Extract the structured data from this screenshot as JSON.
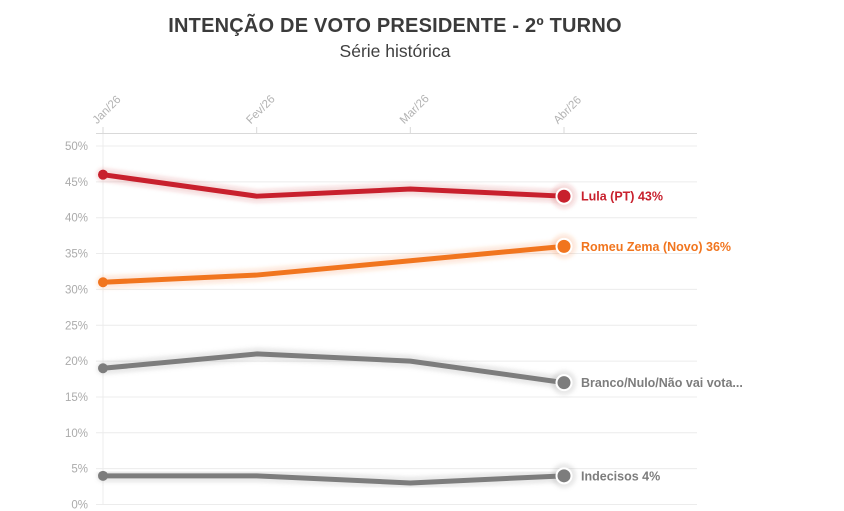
{
  "header": {
    "title": "INTENÇÃO DE VOTO PRESIDENTE - 2º TURNO",
    "subtitle": "Série histórica"
  },
  "colors": {
    "red": "#c8202d",
    "orange": "#f1751e",
    "gray": "#7d7d7d",
    "title_text": "#3b3b3b",
    "grid_line": "#ececec",
    "axis_line": "#d9d9d9",
    "x_tick_label": "#b3b3b3",
    "y_tick_label": "#ababab",
    "background": "#ffffff"
  },
  "chart_data": {
    "type": "line",
    "title": "INTENÇÃO DE VOTO PRESIDENTE - 2º TURNO",
    "subtitle": "Série histórica",
    "categories": [
      "Jan/26",
      "Fev/26",
      "Mar/26",
      "Abr/26"
    ],
    "series": [
      {
        "name": "Lula (PT)",
        "values": [
          46,
          43,
          44,
          43
        ],
        "color": "#c8202d",
        "end_label": "Lula (PT) 43%"
      },
      {
        "name": "Romeu Zema (Novo)",
        "values": [
          31,
          32,
          34,
          36
        ],
        "color": "#f1751e",
        "end_label": "Romeu Zema (Novo) 36%"
      },
      {
        "name": "Branco/Nulo/Não vai votar",
        "values": [
          19,
          21,
          20,
          17
        ],
        "color": "#7d7d7d",
        "end_label": "Branco/Nulo/Não vai vota..."
      },
      {
        "name": "Indecisos",
        "values": [
          4,
          4,
          3,
          4
        ],
        "color": "#7d7d7d",
        "end_label": "Indecisos 4%"
      }
    ],
    "xlabel": "",
    "ylabel": "",
    "ylim": [
      0,
      50
    ],
    "ytick_step": 5,
    "ytick_suffix": "%",
    "x_axis_position": "top",
    "x_tick_label_rotation": -45,
    "grid": "horizontal",
    "legend_position": "end-of-line-labels",
    "markers": "first-and-last-point"
  }
}
